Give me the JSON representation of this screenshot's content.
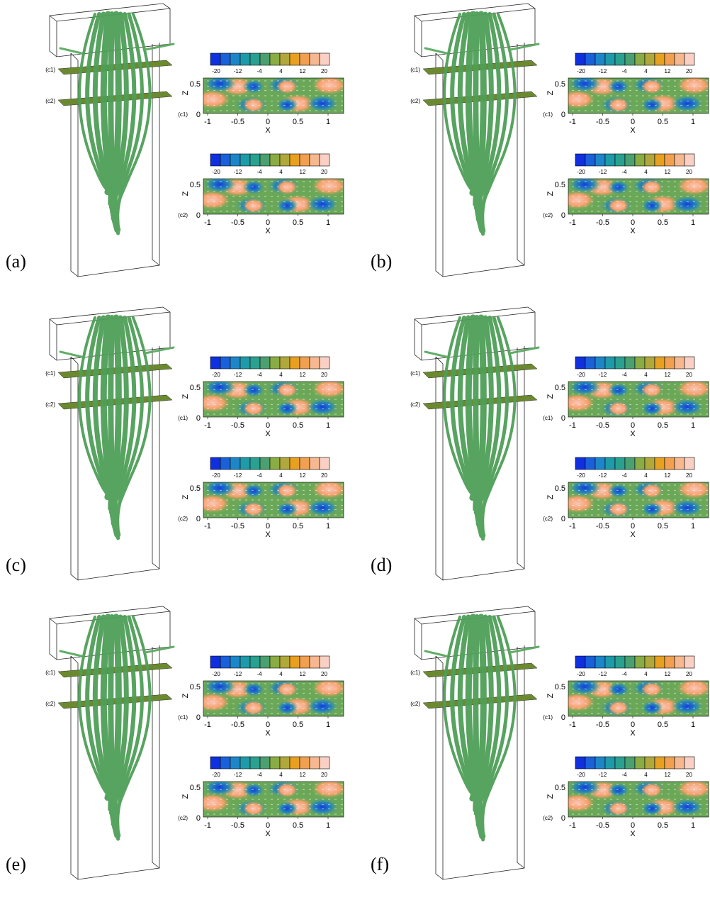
{
  "panels": [
    {
      "label": "(a)"
    },
    {
      "label": "(b)"
    },
    {
      "label": "(c)"
    },
    {
      "label": "(d)"
    },
    {
      "label": "(e)"
    },
    {
      "label": "(f)"
    }
  ],
  "slice_labels": [
    "(c1)",
    "(c2)"
  ],
  "colorbar_ticks": [
    -20,
    -12,
    -4,
    4,
    12,
    20
  ],
  "x_ticks": [
    -1,
    -0.5,
    0,
    0.5,
    1
  ],
  "z_ticks": [
    0,
    0.5
  ],
  "x_label": "X",
  "z_label": "Z"
}
